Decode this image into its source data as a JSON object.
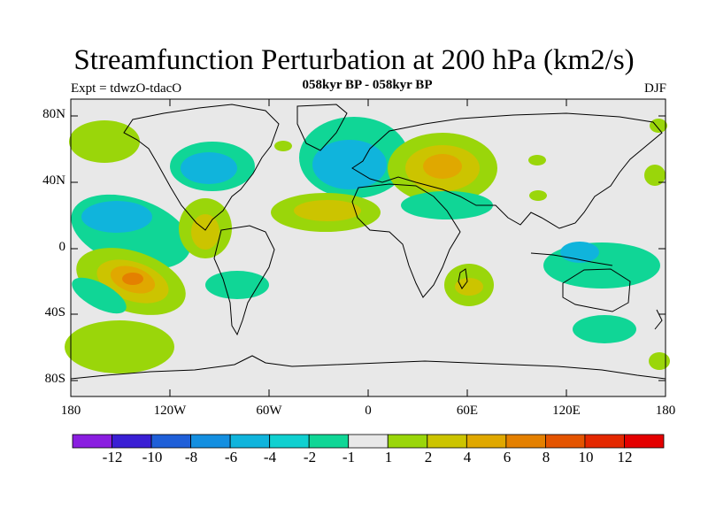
{
  "title": "Streamfunction Perturbation at 200 hPa (km2/s)",
  "subtitle": "058kyr BP - 058kyr BP",
  "experiment": "Expt = tdwzO-tdacO",
  "season": "DJF",
  "axes": {
    "y_labels": [
      "80N",
      "40N",
      "0",
      "40S",
      "80S"
    ],
    "x_labels": [
      "180",
      "120W",
      "60W",
      "0",
      "60E",
      "120E",
      "180"
    ]
  },
  "colorbar": {
    "labels": [
      "-12",
      "-10",
      "-8",
      "-6",
      "-4",
      "-2",
      "-1",
      "1",
      "2",
      "4",
      "6",
      "8",
      "10",
      "12"
    ],
    "colors": [
      "#8a1ee0",
      "#3a1fd4",
      "#1f5fd8",
      "#148fe0",
      "#10b4dc",
      "#10d0d0",
      "#10d696",
      "#e8e8e8",
      "#9ad60a",
      "#ccc400",
      "#e0a800",
      "#e48000",
      "#e45400",
      "#e42800",
      "#e40000"
    ]
  },
  "colors": {
    "ocean_background": "#e8e8e8",
    "coastline": "#000000"
  }
}
